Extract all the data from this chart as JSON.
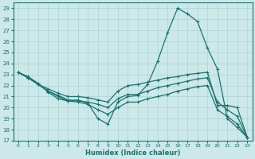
{
  "xlabel": "Humidex (Indice chaleur)",
  "bg_color": "#cce8e8",
  "grid_color": "#aad4d4",
  "line_color": "#1e7070",
  "spine_color": "#1e7070",
  "xlim": [
    -0.5,
    23.5
  ],
  "ylim": [
    17,
    29.5
  ],
  "yticks": [
    17,
    18,
    19,
    20,
    21,
    22,
    23,
    24,
    25,
    26,
    27,
    28,
    29
  ],
  "xticks": [
    0,
    1,
    2,
    3,
    4,
    5,
    6,
    7,
    8,
    9,
    10,
    11,
    12,
    13,
    14,
    15,
    16,
    17,
    18,
    19,
    20,
    21,
    22,
    23
  ],
  "line1_x": [
    0,
    1,
    2,
    3,
    4,
    5,
    6,
    7,
    8,
    9,
    10,
    11,
    12,
    13,
    14,
    15,
    16,
    17,
    18,
    19,
    20,
    21,
    22,
    23
  ],
  "line1_y": [
    23.2,
    22.8,
    22.2,
    21.4,
    20.8,
    20.6,
    20.7,
    20.4,
    19.0,
    18.5,
    20.5,
    21.0,
    21.1,
    22.1,
    24.2,
    26.8,
    29.0,
    28.5,
    27.8,
    25.4,
    23.5,
    19.0,
    18.2,
    17.3
  ],
  "line2_x": [
    0,
    1,
    2,
    3,
    4,
    5,
    6,
    7,
    8,
    9,
    10,
    11,
    12,
    13,
    14,
    15,
    16,
    17,
    18,
    19,
    20,
    21,
    22,
    23
  ],
  "line2_y": [
    23.2,
    22.7,
    22.1,
    21.7,
    21.3,
    21.0,
    21.0,
    20.9,
    20.7,
    20.5,
    21.5,
    22.0,
    22.1,
    22.3,
    22.5,
    22.7,
    22.8,
    23.0,
    23.1,
    23.2,
    20.2,
    20.2,
    20.0,
    17.3
  ],
  "line3_x": [
    0,
    1,
    2,
    3,
    4,
    5,
    6,
    7,
    8,
    9,
    10,
    11,
    12,
    13,
    14,
    15,
    16,
    17,
    18,
    19,
    20,
    21,
    22,
    23
  ],
  "line3_y": [
    23.2,
    22.7,
    22.1,
    21.5,
    21.1,
    20.7,
    20.6,
    20.5,
    20.3,
    20.0,
    20.8,
    21.2,
    21.2,
    21.5,
    21.8,
    22.0,
    22.2,
    22.4,
    22.6,
    22.7,
    20.5,
    19.8,
    19.2,
    17.3
  ],
  "line4_x": [
    0,
    1,
    2,
    3,
    4,
    5,
    6,
    7,
    8,
    9,
    10,
    11,
    12,
    13,
    14,
    15,
    16,
    17,
    18,
    19,
    20,
    21,
    22,
    23
  ],
  "line4_y": [
    23.2,
    22.7,
    22.1,
    21.5,
    21.0,
    20.6,
    20.5,
    20.3,
    19.8,
    19.4,
    20.0,
    20.5,
    20.5,
    20.8,
    21.0,
    21.2,
    21.5,
    21.7,
    21.9,
    22.0,
    19.8,
    19.2,
    18.5,
    17.3
  ]
}
